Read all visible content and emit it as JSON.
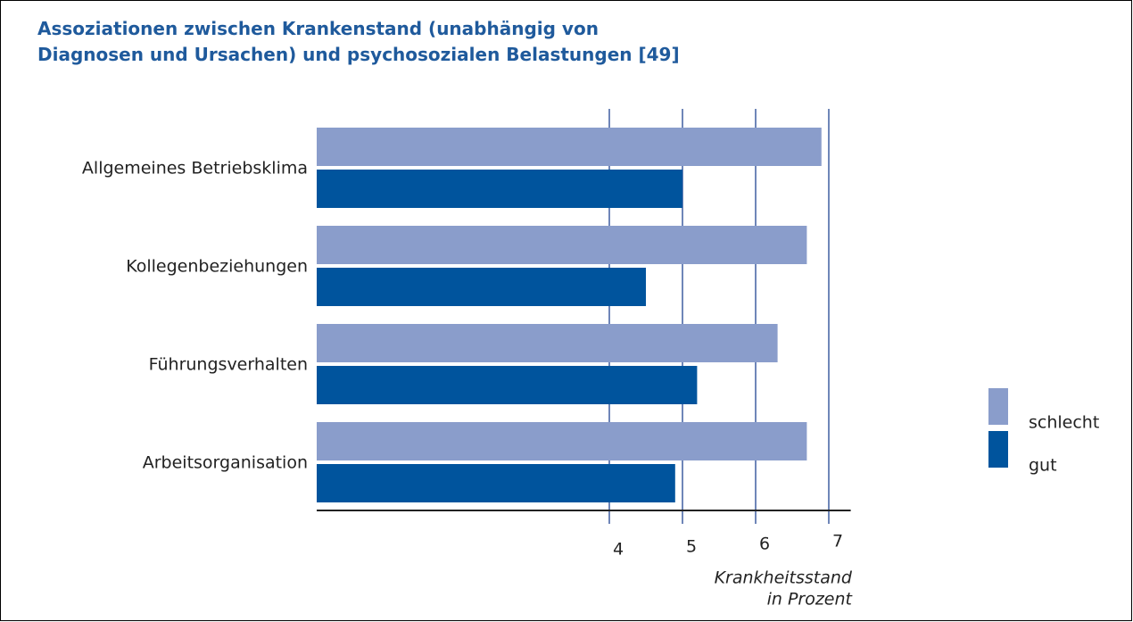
{
  "chart_data": {
    "type": "hbar",
    "title": "Assoziationen zwischen Krankenstand (unabhängig von Diagnosen und Ursachen) und psychosozialen Belastungen [49]",
    "categories": [
      "Allgemeines Betriebsklima",
      "Kollegenbeziehungen",
      "Führungsverhalten",
      "Arbeitsorganisation"
    ],
    "series": [
      {
        "name": "schlecht",
        "color": "#8a9dcb",
        "values": [
          6.9,
          6.7,
          6.3,
          6.7
        ]
      },
      {
        "name": "gut",
        "color": "#00549d",
        "values": [
          5.0,
          4.5,
          5.2,
          4.9
        ]
      }
    ],
    "xlim": [
      0,
      7.3
    ],
    "xticks": [
      4,
      5,
      6,
      7
    ],
    "grid": true,
    "xlabel": [
      "Krankheitsstand",
      "in Prozent"
    ],
    "legend": "right"
  }
}
